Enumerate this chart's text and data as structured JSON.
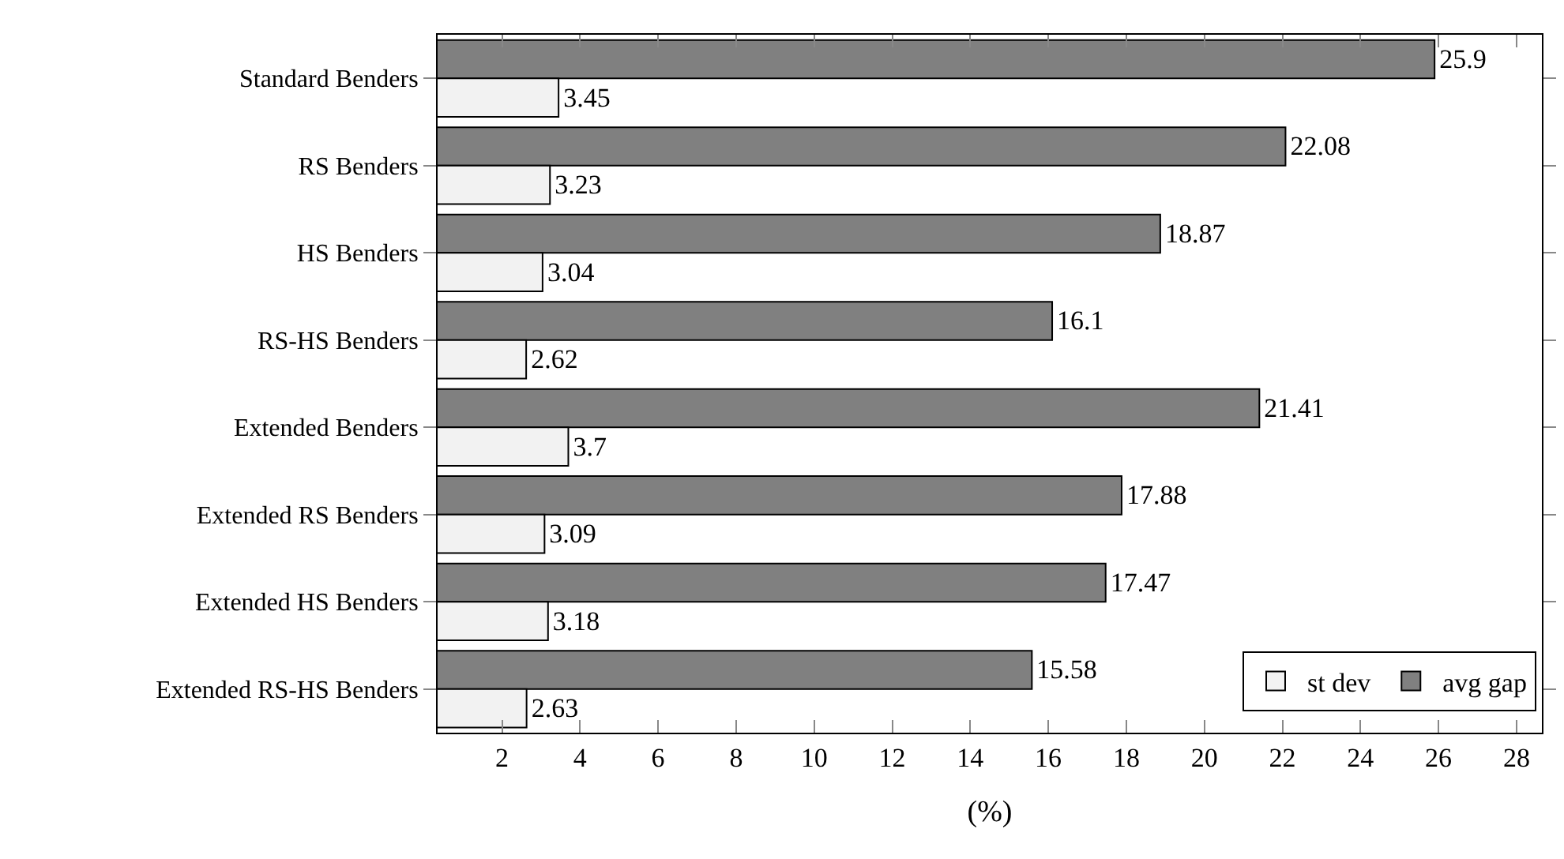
{
  "chart_data": {
    "type": "bar",
    "orientation": "horizontal",
    "xlabel": "(%)",
    "categories": [
      "Standard Benders",
      "RS Benders",
      "HS Benders",
      "RS-HS Benders",
      "Extended Benders",
      "Extended RS Benders",
      "Extended HS Benders",
      "Extended RS-HS Benders"
    ],
    "series": [
      {
        "name": "avg gap",
        "color": "#808080",
        "values": [
          25.9,
          22.08,
          18.87,
          16.1,
          21.41,
          17.88,
          17.47,
          15.58
        ]
      },
      {
        "name": "st dev",
        "color": "#f2f2f2",
        "values": [
          3.45,
          3.23,
          3.04,
          2.62,
          3.7,
          3.09,
          3.18,
          2.63
        ]
      }
    ],
    "xlim": [
      0.35,
      28.65
    ],
    "xticks": [
      2,
      4,
      6,
      8,
      10,
      12,
      14,
      16,
      18,
      20,
      22,
      24,
      26,
      28
    ],
    "data_labels": true,
    "legend": "bottom right"
  }
}
